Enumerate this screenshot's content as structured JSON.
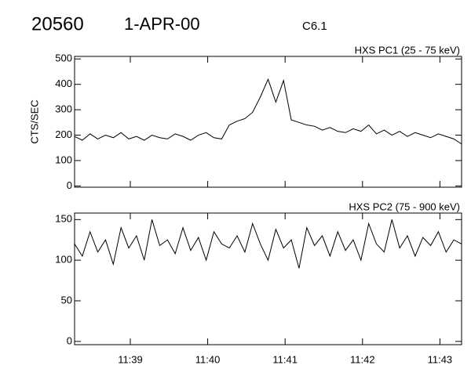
{
  "header": {
    "event": "20560",
    "date": "1-APR-00",
    "class": "C6.1"
  },
  "chart_data": [
    {
      "type": "line",
      "ylabel": "CTS/SEC",
      "x": [
        38.28,
        38.38,
        38.48,
        38.58,
        38.68,
        38.78,
        38.88,
        38.98,
        39.08,
        39.18,
        39.28,
        39.38,
        39.48,
        39.58,
        39.68,
        39.78,
        39.88,
        39.98,
        40.08,
        40.18,
        40.28,
        40.38,
        40.48,
        40.58,
        40.68,
        40.78,
        40.88,
        40.98,
        41.08,
        41.18,
        41.28,
        41.38,
        41.48,
        41.58,
        41.68,
        41.78,
        41.88,
        41.98,
        42.08,
        42.18,
        42.28,
        42.38,
        42.48,
        42.58,
        42.68,
        42.78,
        42.88,
        42.98,
        43.08,
        43.18,
        43.28
      ],
      "series": [
        {
          "name": "HXS PC1 (25 - 75 keV)",
          "color": "#000000",
          "values": [
            195,
            180,
            205,
            185,
            200,
            190,
            210,
            185,
            195,
            180,
            200,
            190,
            185,
            205,
            195,
            180,
            200,
            210,
            190,
            185,
            240,
            255,
            265,
            290,
            350,
            420,
            330,
            415,
            260,
            250,
            240,
            235,
            220,
            230,
            215,
            210,
            225,
            215,
            240,
            205,
            220,
            200,
            215,
            195,
            210,
            200,
            190,
            205,
            195,
            185,
            165
          ]
        }
      ],
      "xlim": [
        38.28,
        43.28
      ],
      "ylim": [
        -5,
        510
      ],
      "yticks": [
        0,
        100,
        200,
        300,
        400,
        500
      ]
    },
    {
      "type": "line",
      "x": [
        38.28,
        38.38,
        38.48,
        38.58,
        38.68,
        38.78,
        38.88,
        38.98,
        39.08,
        39.18,
        39.28,
        39.38,
        39.48,
        39.58,
        39.68,
        39.78,
        39.88,
        39.98,
        40.08,
        40.18,
        40.28,
        40.38,
        40.48,
        40.58,
        40.68,
        40.78,
        40.88,
        40.98,
        41.08,
        41.18,
        41.28,
        41.38,
        41.48,
        41.58,
        41.68,
        41.78,
        41.88,
        41.98,
        42.08,
        42.18,
        42.28,
        42.38,
        42.48,
        42.58,
        42.68,
        42.78,
        42.88,
        42.98,
        43.08,
        43.18,
        43.28
      ],
      "series": [
        {
          "name": "HXS PC2 (75 - 900 keV)",
          "color": "#000000",
          "values": [
            120,
            105,
            135,
            110,
            125,
            95,
            140,
            115,
            130,
            100,
            150,
            118,
            125,
            108,
            140,
            112,
            128,
            100,
            135,
            120,
            115,
            130,
            110,
            145,
            120,
            100,
            138,
            115,
            125,
            90,
            140,
            118,
            130,
            105,
            135,
            112,
            125,
            100,
            145,
            120,
            110,
            150,
            115,
            130,
            105,
            128,
            118,
            135,
            110,
            125,
            120
          ]
        }
      ],
      "xlim": [
        38.28,
        43.28
      ],
      "xticks": [
        {
          "value": 39,
          "label": "11:39"
        },
        {
          "value": 40,
          "label": "11:40"
        },
        {
          "value": 41,
          "label": "11:41"
        },
        {
          "value": 42,
          "label": "11:42"
        },
        {
          "value": 43,
          "label": "11:43"
        }
      ],
      "ylim": [
        -4,
        158
      ],
      "yticks": [
        0,
        50,
        100,
        150
      ]
    }
  ]
}
